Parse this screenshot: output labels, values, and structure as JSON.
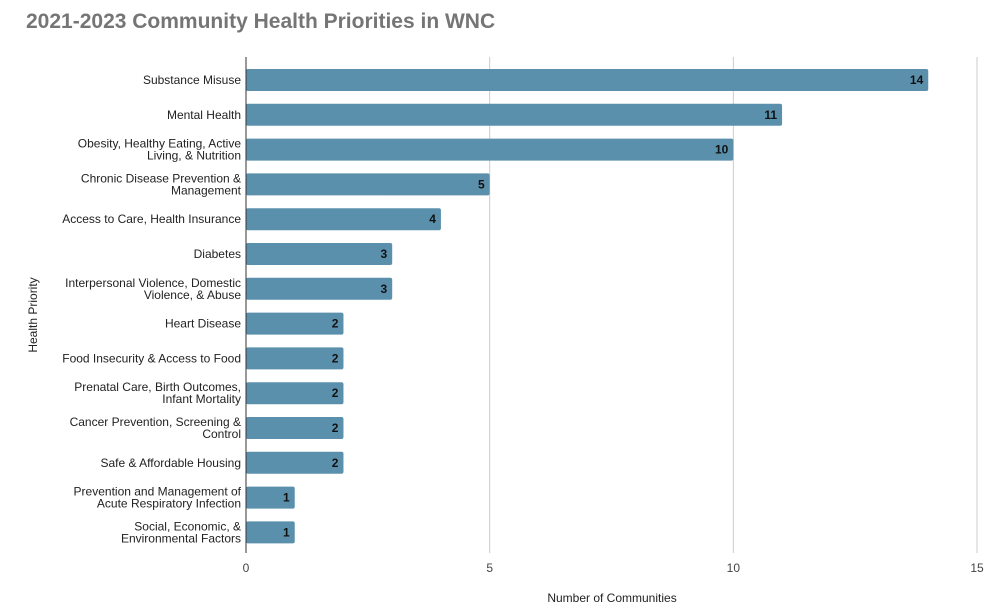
{
  "chart_data": {
    "type": "bar",
    "orientation": "horizontal",
    "title": "2021-2023 Community Health Priorities in WNC",
    "xlabel": "Number of Communities",
    "ylabel": "Health Priority",
    "xlim": [
      0,
      15
    ],
    "xticks": [
      0,
      5,
      10,
      15
    ],
    "grid": true,
    "legend": "none",
    "bar_color": "#5b90ad",
    "categories": [
      [
        "Substance Misuse"
      ],
      [
        "Mental Health"
      ],
      [
        "Obesity, Healthy Eating, Active",
        "Living, & Nutrition"
      ],
      [
        "Chronic Disease Prevention &",
        "Management"
      ],
      [
        "Access to Care, Health Insurance"
      ],
      [
        "Diabetes"
      ],
      [
        "Interpersonal Violence, Domestic",
        "Violence, & Abuse"
      ],
      [
        "Heart Disease"
      ],
      [
        "Food Insecurity & Access to Food"
      ],
      [
        "Prenatal Care, Birth Outcomes,",
        "Infant Mortality"
      ],
      [
        "Cancer Prevention, Screening &",
        "Control"
      ],
      [
        "Safe & Affordable Housing"
      ],
      [
        "Prevention and Management of",
        "Acute Respiratory Infection"
      ],
      [
        "Social, Economic, &",
        "Environmental Factors"
      ]
    ],
    "values": [
      14,
      11,
      10,
      5,
      4,
      3,
      3,
      2,
      2,
      2,
      2,
      2,
      1,
      1
    ]
  }
}
